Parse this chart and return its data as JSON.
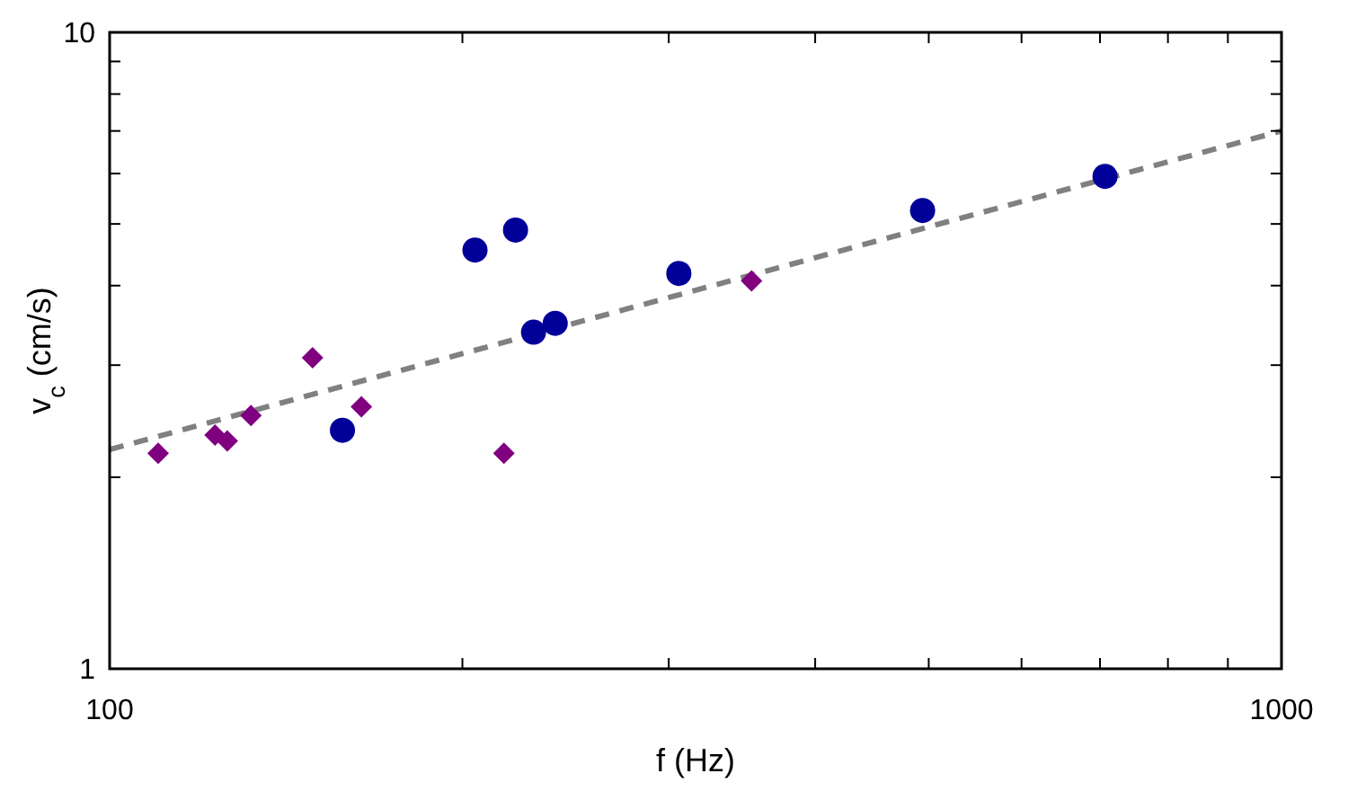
{
  "chart_data": {
    "type": "scatter",
    "xlabel": "f (Hz)",
    "ylabel": "v$_{c}$ (cm/s)",
    "log": "xy",
    "grid": false,
    "xlim": [
      100,
      1000
    ],
    "ylim": [
      1,
      10
    ],
    "xticks": [
      100,
      {
        "value": 200,
        "label": null
      },
      {
        "value": 300,
        "label": null
      },
      {
        "value": 400,
        "label": null
      },
      {
        "value": 500,
        "label": null
      },
      {
        "value": 600,
        "label": null
      },
      {
        "value": 700,
        "label": null
      },
      {
        "value": 800,
        "label": null
      },
      {
        "value": 900,
        "label": null
      },
      1000
    ],
    "yticks": [
      1,
      {
        "value": 2,
        "label": null
      },
      {
        "value": 3,
        "label": null
      },
      {
        "value": 4,
        "label": null
      },
      {
        "value": 5,
        "label": null
      },
      {
        "value": 6,
        "label": null
      },
      {
        "value": 7,
        "label": null
      },
      {
        "value": 8,
        "label": null
      },
      {
        "value": 9,
        "label": null
      },
      10
    ],
    "series": [
      {
        "type": "line",
        "color": "#808080",
        "line_style": "dashed",
        "marker": "none",
        "x": [
          100,
          1000
        ],
        "values": [
          2.21,
          7.0
        ]
      },
      {
        "color": "#000099",
        "marker": "circle",
        "x": [
          158,
          205,
          222,
          230,
          240,
          306,
          494,
          707
        ],
        "values": [
          2.37,
          4.55,
          4.89,
          3.38,
          3.49,
          4.18,
          5.25,
          5.94
        ]
      },
      {
        "color": "#800080",
        "marker": "diamond",
        "x": [
          110,
          123,
          126,
          132,
          149,
          164,
          217,
          353
        ],
        "values": [
          2.18,
          2.33,
          2.28,
          2.5,
          3.08,
          2.58,
          2.18,
          4.07
        ]
      }
    ]
  }
}
